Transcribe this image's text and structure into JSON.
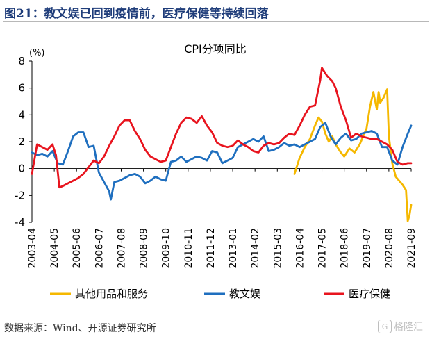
{
  "figure": {
    "title": "图21：教文娱已回到疫情前，医疗保健等持续回落",
    "source": "数据来源：Wind、开源证券研究所",
    "watermark": "格隆汇"
  },
  "colors": {
    "series_other": "#f5b800",
    "series_edu": "#1f6fbf",
    "series_med": "#e8141e",
    "title": "#1f3d7a"
  },
  "chart_data": {
    "type": "line",
    "title": "CPI分项同比",
    "unit_label": "(%)",
    "ylim": [
      -4,
      8
    ],
    "yticks": [
      -4,
      -2,
      0,
      2,
      4,
      6,
      8
    ],
    "x_range": [
      "2003-04",
      "2021-09"
    ],
    "xticks": [
      "2003-04",
      "2004-05",
      "2005-06",
      "2006-07",
      "2007-08",
      "2008-09",
      "2009-10",
      "2010-11",
      "2011-12",
      "2013-01",
      "2014-02",
      "2015-03",
      "2016-04",
      "2017-05",
      "2018-06",
      "2019-07",
      "2020-08",
      "2021-09"
    ],
    "grid": false,
    "legend_position": "bottom",
    "series": [
      {
        "name": "其他用品和服务",
        "color": "#f5b800",
        "points": [
          [
            "2016-01",
            -0.4
          ],
          [
            "2016-04",
            0.8
          ],
          [
            "2016-07",
            1.6
          ],
          [
            "2016-10",
            2.2
          ],
          [
            "2017-01",
            3.2
          ],
          [
            "2017-03",
            3.8
          ],
          [
            "2017-05",
            3.5
          ],
          [
            "2017-07",
            2.6
          ],
          [
            "2017-09",
            2.0
          ],
          [
            "2017-11",
            2.4
          ],
          [
            "2018-01",
            1.8
          ],
          [
            "2018-04",
            1.2
          ],
          [
            "2018-06",
            0.9
          ],
          [
            "2018-09",
            1.5
          ],
          [
            "2018-12",
            1.2
          ],
          [
            "2019-03",
            1.8
          ],
          [
            "2019-05",
            2.4
          ],
          [
            "2019-07",
            3.0
          ],
          [
            "2019-09",
            4.6
          ],
          [
            "2019-11",
            5.7
          ],
          [
            "2020-01",
            4.4
          ],
          [
            "2020-02",
            5.7
          ],
          [
            "2020-03",
            4.9
          ],
          [
            "2020-05",
            5.3
          ],
          [
            "2020-07",
            5.9
          ],
          [
            "2020-08",
            2.4
          ],
          [
            "2020-10",
            0.4
          ],
          [
            "2020-12",
            -0.6
          ],
          [
            "2021-02",
            -0.9
          ],
          [
            "2021-04",
            -1.2
          ],
          [
            "2021-06",
            -1.6
          ],
          [
            "2021-07",
            -3.9
          ],
          [
            "2021-08",
            -3.5
          ],
          [
            "2021-09",
            -2.7
          ]
        ]
      },
      {
        "name": "教文娱",
        "color": "#1f6fbf",
        "points": [
          [
            "2003-04",
            1.2
          ],
          [
            "2003-07",
            1.0
          ],
          [
            "2003-10",
            1.1
          ],
          [
            "2004-01",
            0.9
          ],
          [
            "2004-04",
            1.3
          ],
          [
            "2004-07",
            0.4
          ],
          [
            "2004-10",
            0.3
          ],
          [
            "2005-01",
            1.3
          ],
          [
            "2005-04",
            2.4
          ],
          [
            "2005-07",
            2.7
          ],
          [
            "2005-10",
            2.7
          ],
          [
            "2006-01",
            1.6
          ],
          [
            "2006-04",
            1.7
          ],
          [
            "2006-07",
            -0.3
          ],
          [
            "2006-10",
            -1.0
          ],
          [
            "2007-01",
            -1.7
          ],
          [
            "2007-02",
            -2.3
          ],
          [
            "2007-04",
            -1.0
          ],
          [
            "2007-07",
            -0.9
          ],
          [
            "2007-10",
            -0.7
          ],
          [
            "2008-01",
            -0.5
          ],
          [
            "2008-04",
            -0.4
          ],
          [
            "2008-07",
            -0.6
          ],
          [
            "2008-10",
            -1.1
          ],
          [
            "2009-01",
            -0.9
          ],
          [
            "2009-04",
            -0.6
          ],
          [
            "2009-07",
            -0.8
          ],
          [
            "2009-10",
            -0.9
          ],
          [
            "2010-01",
            0.5
          ],
          [
            "2010-04",
            0.6
          ],
          [
            "2010-07",
            0.9
          ],
          [
            "2010-10",
            0.5
          ],
          [
            "2011-01",
            0.7
          ],
          [
            "2011-04",
            0.9
          ],
          [
            "2011-07",
            0.8
          ],
          [
            "2011-10",
            0.6
          ],
          [
            "2012-01",
            1.3
          ],
          [
            "2012-04",
            1.2
          ],
          [
            "2012-07",
            0.4
          ],
          [
            "2012-10",
            0.6
          ],
          [
            "2013-01",
            0.8
          ],
          [
            "2013-04",
            1.6
          ],
          [
            "2013-07",
            1.8
          ],
          [
            "2013-10",
            2.0
          ],
          [
            "2014-01",
            2.2
          ],
          [
            "2014-04",
            2.0
          ],
          [
            "2014-07",
            2.4
          ],
          [
            "2014-10",
            1.3
          ],
          [
            "2015-01",
            1.4
          ],
          [
            "2015-04",
            1.6
          ],
          [
            "2015-07",
            1.9
          ],
          [
            "2015-10",
            1.7
          ],
          [
            "2016-01",
            1.8
          ],
          [
            "2016-04",
            1.6
          ],
          [
            "2016-07",
            1.8
          ],
          [
            "2016-10",
            2.0
          ],
          [
            "2017-01",
            2.2
          ],
          [
            "2017-04",
            3.1
          ],
          [
            "2017-07",
            3.4
          ],
          [
            "2017-10",
            2.4
          ],
          [
            "2018-01",
            1.8
          ],
          [
            "2018-04",
            2.3
          ],
          [
            "2018-07",
            2.6
          ],
          [
            "2018-10",
            2.1
          ],
          [
            "2019-01",
            2.2
          ],
          [
            "2019-04",
            2.6
          ],
          [
            "2019-07",
            2.7
          ],
          [
            "2019-10",
            2.8
          ],
          [
            "2020-01",
            2.6
          ],
          [
            "2020-04",
            1.6
          ],
          [
            "2020-07",
            1.6
          ],
          [
            "2020-10",
            0.6
          ],
          [
            "2021-01",
            0.3
          ],
          [
            "2021-04",
            1.6
          ],
          [
            "2021-07",
            2.6
          ],
          [
            "2021-09",
            3.2
          ]
        ]
      },
      {
        "name": "医疗保健",
        "color": "#e8141e",
        "points": [
          [
            "2003-04",
            -0.4
          ],
          [
            "2003-07",
            1.8
          ],
          [
            "2003-10",
            1.6
          ],
          [
            "2004-01",
            1.4
          ],
          [
            "2004-04",
            1.8
          ],
          [
            "2004-06",
            1.0
          ],
          [
            "2004-08",
            -1.4
          ],
          [
            "2004-10",
            -1.3
          ],
          [
            "2005-01",
            -1.1
          ],
          [
            "2005-04",
            -0.9
          ],
          [
            "2005-07",
            -0.7
          ],
          [
            "2005-10",
            -0.4
          ],
          [
            "2006-01",
            0.1
          ],
          [
            "2006-04",
            0.6
          ],
          [
            "2006-07",
            0.4
          ],
          [
            "2006-10",
            0.9
          ],
          [
            "2007-01",
            1.7
          ],
          [
            "2007-04",
            2.4
          ],
          [
            "2007-07",
            3.2
          ],
          [
            "2007-10",
            3.6
          ],
          [
            "2008-01",
            3.6
          ],
          [
            "2008-04",
            2.8
          ],
          [
            "2008-07",
            2.2
          ],
          [
            "2008-10",
            1.4
          ],
          [
            "2009-01",
            0.9
          ],
          [
            "2009-04",
            0.7
          ],
          [
            "2009-07",
            0.5
          ],
          [
            "2009-10",
            0.6
          ],
          [
            "2010-01",
            1.6
          ],
          [
            "2010-04",
            2.6
          ],
          [
            "2010-07",
            3.4
          ],
          [
            "2010-10",
            3.8
          ],
          [
            "2011-01",
            3.7
          ],
          [
            "2011-04",
            3.4
          ],
          [
            "2011-07",
            3.9
          ],
          [
            "2011-10",
            3.2
          ],
          [
            "2012-01",
            2.7
          ],
          [
            "2012-04",
            1.9
          ],
          [
            "2012-07",
            1.7
          ],
          [
            "2012-10",
            1.6
          ],
          [
            "2013-01",
            1.7
          ],
          [
            "2013-04",
            2.1
          ],
          [
            "2013-07",
            1.8
          ],
          [
            "2013-10",
            1.6
          ],
          [
            "2014-01",
            1.3
          ],
          [
            "2014-04",
            1.2
          ],
          [
            "2014-07",
            1.7
          ],
          [
            "2014-10",
            1.9
          ],
          [
            "2015-01",
            1.8
          ],
          [
            "2015-04",
            1.9
          ],
          [
            "2015-07",
            2.3
          ],
          [
            "2015-10",
            2.6
          ],
          [
            "2016-01",
            2.5
          ],
          [
            "2016-04",
            3.2
          ],
          [
            "2016-07",
            4.0
          ],
          [
            "2016-10",
            4.6
          ],
          [
            "2017-01",
            4.7
          ],
          [
            "2017-04",
            6.6
          ],
          [
            "2017-05",
            7.5
          ],
          [
            "2017-08",
            6.9
          ],
          [
            "2017-11",
            6.5
          ],
          [
            "2018-01",
            6.0
          ],
          [
            "2018-04",
            4.6
          ],
          [
            "2018-07",
            3.6
          ],
          [
            "2018-10",
            2.3
          ],
          [
            "2019-01",
            2.6
          ],
          [
            "2019-04",
            2.4
          ],
          [
            "2019-07",
            2.3
          ],
          [
            "2019-10",
            2.2
          ],
          [
            "2020-01",
            2.2
          ],
          [
            "2020-04",
            2.0
          ],
          [
            "2020-07",
            1.8
          ],
          [
            "2020-10",
            1.4
          ],
          [
            "2021-01",
            0.5
          ],
          [
            "2021-04",
            0.3
          ],
          [
            "2021-07",
            0.4
          ],
          [
            "2021-09",
            0.4
          ]
        ]
      }
    ]
  }
}
